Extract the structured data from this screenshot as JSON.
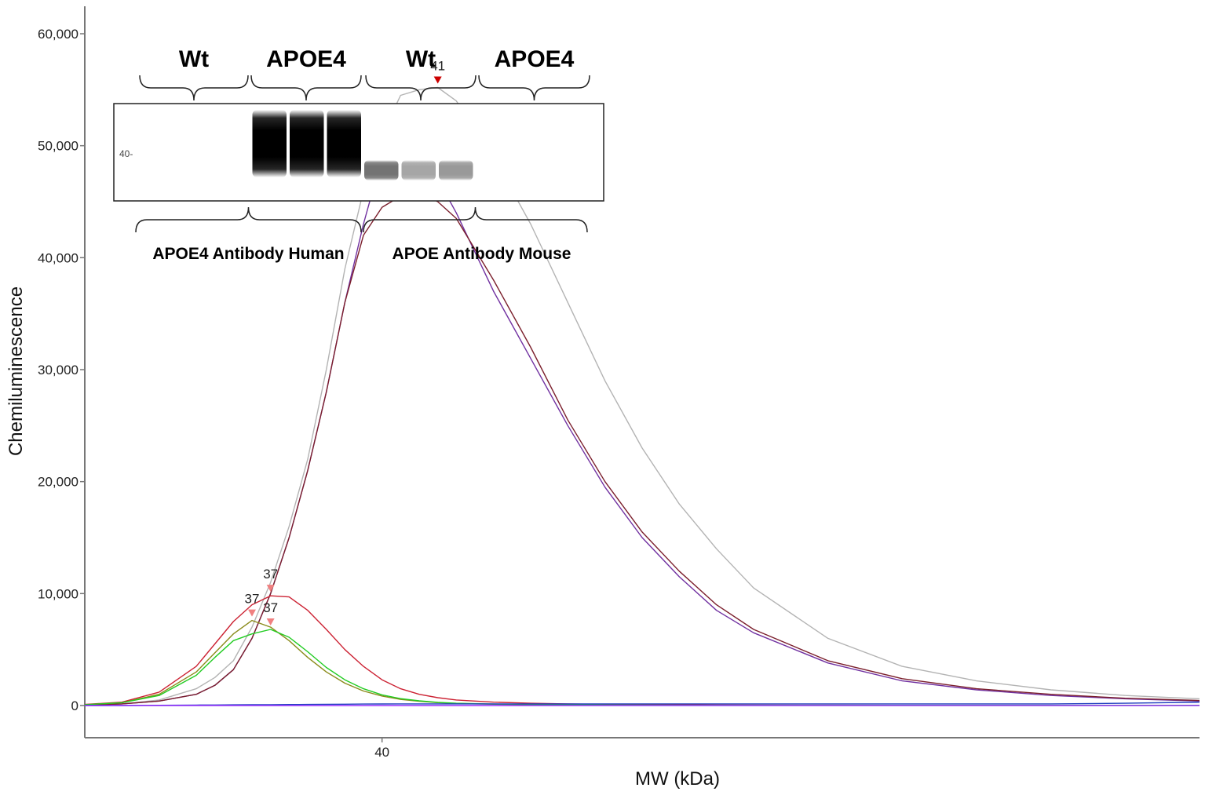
{
  "chart_data": {
    "type": "line",
    "title": "",
    "xlabel": "MW (kDa)",
    "ylabel": "Chemiluminescence",
    "ylim": [
      0,
      60000
    ],
    "xlim": [
      32,
      62
    ],
    "x_ticks": [
      40
    ],
    "x_tick_labels": [
      "40"
    ],
    "y_ticks": [
      0,
      10000,
      20000,
      30000,
      40000,
      50000,
      60000
    ],
    "y_tick_labels": [
      "0",
      "10,000",
      "20,000",
      "30,000",
      "40,000",
      "50,000",
      "60,000"
    ],
    "grid": false,
    "legend": "none",
    "x": [
      32,
      33,
      34,
      35,
      35.5,
      36,
      36.5,
      37,
      37.5,
      38,
      38.5,
      39,
      39.5,
      40,
      40.5,
      41,
      41.5,
      42,
      43,
      44,
      45,
      46,
      47,
      48,
      49,
      50,
      52,
      54,
      56,
      58,
      60,
      62
    ],
    "series": [
      {
        "color": "#b3b3b3",
        "values": [
          50,
          150,
          500,
          1500,
          2500,
          4000,
          7000,
          11000,
          16000,
          22000,
          30000,
          39000,
          46000,
          51000,
          54500,
          55000,
          55200,
          54000,
          49000,
          43000,
          36000,
          29000,
          23000,
          18000,
          14000,
          10500,
          6000,
          3500,
          2200,
          1400,
          900,
          600
        ]
      },
      {
        "color": "#7030a0",
        "values": [
          50,
          150,
          400,
          1000,
          1800,
          3200,
          6000,
          10000,
          15000,
          21000,
          28000,
          36000,
          43000,
          49000,
          50800,
          49800,
          47000,
          44000,
          37000,
          31000,
          25000,
          19500,
          15000,
          11500,
          8500,
          6500,
          3800,
          2200,
          1400,
          900,
          600,
          400
        ]
      },
      {
        "color": "#7b1f2c",
        "values": [
          50,
          150,
          400,
          1000,
          1800,
          3200,
          6000,
          10000,
          15000,
          21000,
          28000,
          36000,
          42000,
          44500,
          45500,
          45800,
          45000,
          43500,
          38000,
          32000,
          25500,
          20000,
          15500,
          12000,
          9000,
          6800,
          4000,
          2400,
          1500,
          1000,
          650,
          450
        ]
      },
      {
        "color": "#cc2233",
        "values": [
          100,
          300,
          1200,
          3500,
          5500,
          7500,
          9000,
          9800,
          9700,
          8500,
          6800,
          5000,
          3500,
          2300,
          1500,
          1000,
          700,
          500,
          300,
          200,
          150,
          100,
          80,
          60,
          50,
          40,
          30,
          20,
          20,
          20,
          20,
          20
        ]
      },
      {
        "color": "#8a8a1a",
        "values": [
          80,
          250,
          1000,
          3000,
          4700,
          6400,
          7600,
          7000,
          5800,
          4300,
          3000,
          2000,
          1300,
          850,
          550,
          380,
          260,
          180,
          120,
          80,
          60,
          40,
          30,
          20,
          20,
          20,
          20,
          20,
          20,
          20,
          20,
          20
        ]
      },
      {
        "color": "#22cc22",
        "values": [
          80,
          250,
          900,
          2700,
          4300,
          5800,
          6400,
          6800,
          6100,
          4800,
          3400,
          2300,
          1500,
          950,
          620,
          420,
          290,
          200,
          130,
          90,
          60,
          40,
          30,
          20,
          20,
          20,
          20,
          20,
          20,
          20,
          20,
          20
        ]
      },
      {
        "color": "#1f3fbf",
        "values": [
          0,
          0,
          20,
          40,
          50,
          60,
          70,
          80,
          90,
          100,
          110,
          120,
          130,
          140,
          150,
          150,
          150,
          150,
          150,
          150,
          150,
          150,
          150,
          150,
          150,
          150,
          150,
          150,
          150,
          150,
          200,
          300
        ]
      },
      {
        "color": "#9b30ff",
        "values": [
          0,
          0,
          0,
          0,
          0,
          0,
          0,
          0,
          0,
          0,
          0,
          0,
          0,
          0,
          0,
          0,
          0,
          0,
          0,
          0,
          0,
          0,
          0,
          0,
          0,
          0,
          0,
          0,
          0,
          0,
          0,
          0
        ]
      }
    ],
    "annotations": [
      {
        "text": "41",
        "x": 41.5,
        "y": 55200,
        "color": "#cc0000"
      },
      {
        "text": "41",
        "x": 40.5,
        "y": 50800,
        "color": "#cc0000"
      },
      {
        "text": "41",
        "x": 41,
        "y": 45800,
        "color": "#cc0000"
      },
      {
        "text": "37",
        "x": 37,
        "y": 9800,
        "color": "#f08080"
      },
      {
        "text": "37",
        "x": 36.5,
        "y": 7600,
        "color": "#f08080"
      },
      {
        "text": "37",
        "x": 37,
        "y": 6800,
        "color": "#f08080"
      }
    ],
    "inset": {
      "top_labels": [
        "Wt",
        "APOE4",
        "Wt",
        "APOE4"
      ],
      "bottom_labels": [
        "APOE4 Antibody Human",
        "APOE Antibody Mouse"
      ],
      "marker_label": "40",
      "lanes": [
        {
          "intensity": 0
        },
        {
          "intensity": 0
        },
        {
          "intensity": 0
        },
        {
          "intensity": 1
        },
        {
          "intensity": 1
        },
        {
          "intensity": 1
        },
        {
          "intensity": 0.55
        },
        {
          "intensity": 0.35
        },
        {
          "intensity": 0.4
        },
        {
          "intensity": 0
        },
        {
          "intensity": 0
        },
        {
          "intensity": 0
        }
      ]
    }
  }
}
